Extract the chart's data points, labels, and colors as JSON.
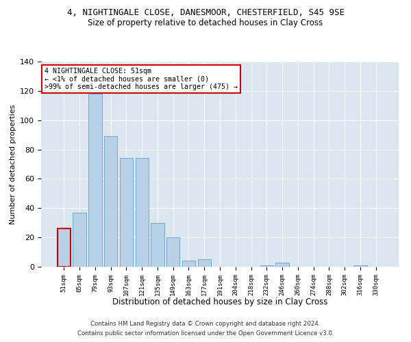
{
  "title": "4, NIGHTINGALE CLOSE, DANESMOOR, CHESTERFIELD, S45 9SE",
  "subtitle": "Size of property relative to detached houses in Clay Cross",
  "xlabel": "Distribution of detached houses by size in Clay Cross",
  "ylabel": "Number of detached properties",
  "categories": [
    "51sqm",
    "65sqm",
    "79sqm",
    "93sqm",
    "107sqm",
    "121sqm",
    "135sqm",
    "149sqm",
    "163sqm",
    "177sqm",
    "191sqm",
    "204sqm",
    "218sqm",
    "232sqm",
    "246sqm",
    "260sqm",
    "274sqm",
    "288sqm",
    "302sqm",
    "316sqm",
    "330sqm"
  ],
  "values": [
    26,
    37,
    118,
    89,
    74,
    74,
    30,
    20,
    4,
    5,
    0,
    0,
    0,
    1,
    3,
    0,
    0,
    0,
    0,
    1,
    0
  ],
  "bar_color": "#b8d0e8",
  "bar_edge_color": "#6aaad4",
  "highlight_index": 0,
  "highlight_edge_color": "#cc0000",
  "background_color": "#ffffff",
  "plot_bg_color": "#dce6f1",
  "grid_color": "#ffffff",
  "annotation_text_line1": "4 NIGHTINGALE CLOSE: 51sqm",
  "annotation_text_line2": "← <1% of detached houses are smaller (0)",
  "annotation_text_line3": ">99% of semi-detached houses are larger (475) →",
  "annotation_box_facecolor": "#ffffff",
  "annotation_box_edgecolor": "#cc0000",
  "footer_line1": "Contains HM Land Registry data © Crown copyright and database right 2024.",
  "footer_line2": "Contains public sector information licensed under the Open Government Licence v3.0.",
  "ylim": [
    0,
    140
  ],
  "yticks": [
    0,
    20,
    40,
    60,
    80,
    100,
    120,
    140
  ]
}
